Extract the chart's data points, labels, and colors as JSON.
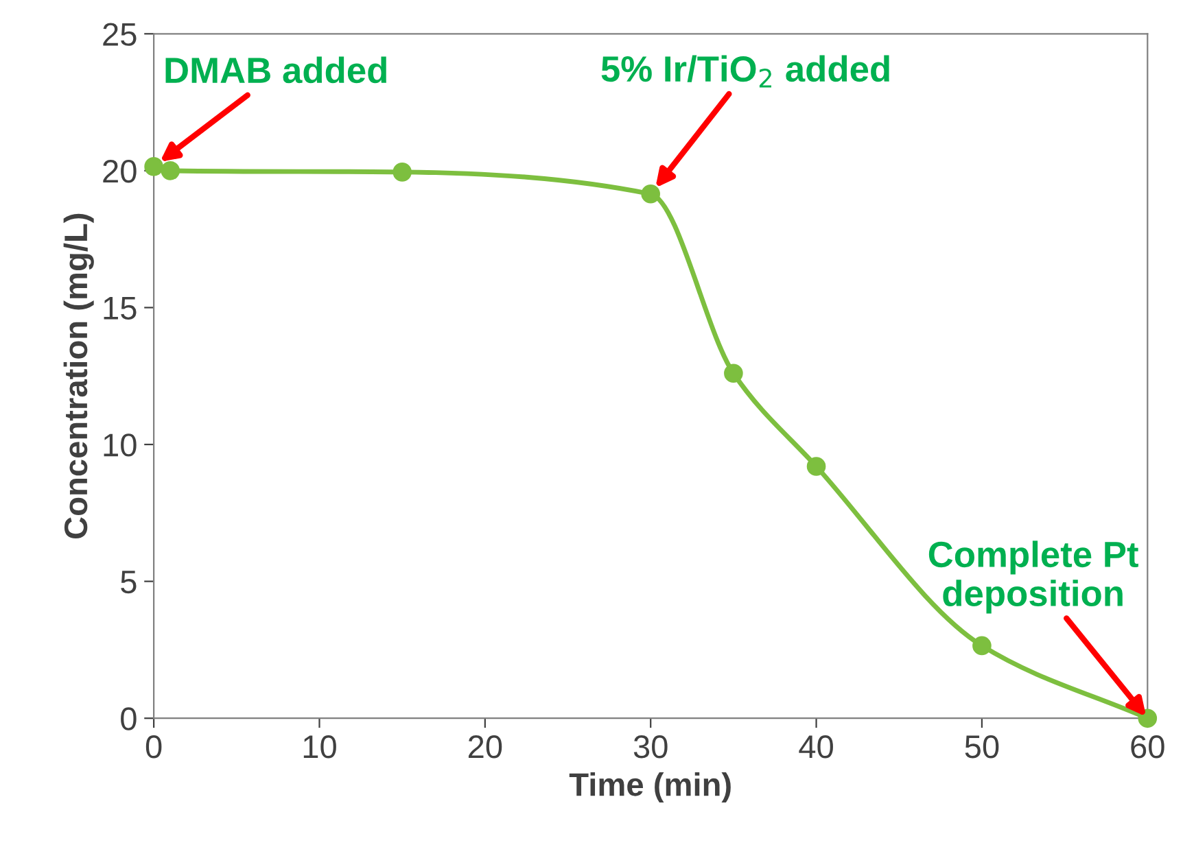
{
  "chart_data": {
    "type": "line",
    "xlabel": "Time (min)",
    "ylabel": "Concentration (mg/L)",
    "x": [
      0,
      1,
      15,
      30,
      35,
      40,
      50,
      60
    ],
    "series": [
      {
        "color": "#7dbf3f",
        "values": [
          20.15,
          20.0,
          19.95,
          19.15,
          12.6,
          9.2,
          2.65,
          0.0
        ]
      }
    ],
    "xlim": [
      0,
      60
    ],
    "xticks": [
      0,
      10,
      20,
      30,
      40,
      50,
      60
    ],
    "ylim": [
      0,
      25
    ],
    "yticks": [
      0,
      5,
      10,
      15,
      20,
      25
    ],
    "grid": false,
    "marker": "circle",
    "line_style": "solid",
    "annotations": [
      {
        "text": "DMAB added",
        "x": 0,
        "y": 20.15
      },
      {
        "text": "5% Ir/TiO$_{2}$ added",
        "x": 30,
        "y": 19.15
      },
      {
        "text": "Complete Pt\ndeposition",
        "x": 60,
        "y": 0.0
      }
    ]
  }
}
